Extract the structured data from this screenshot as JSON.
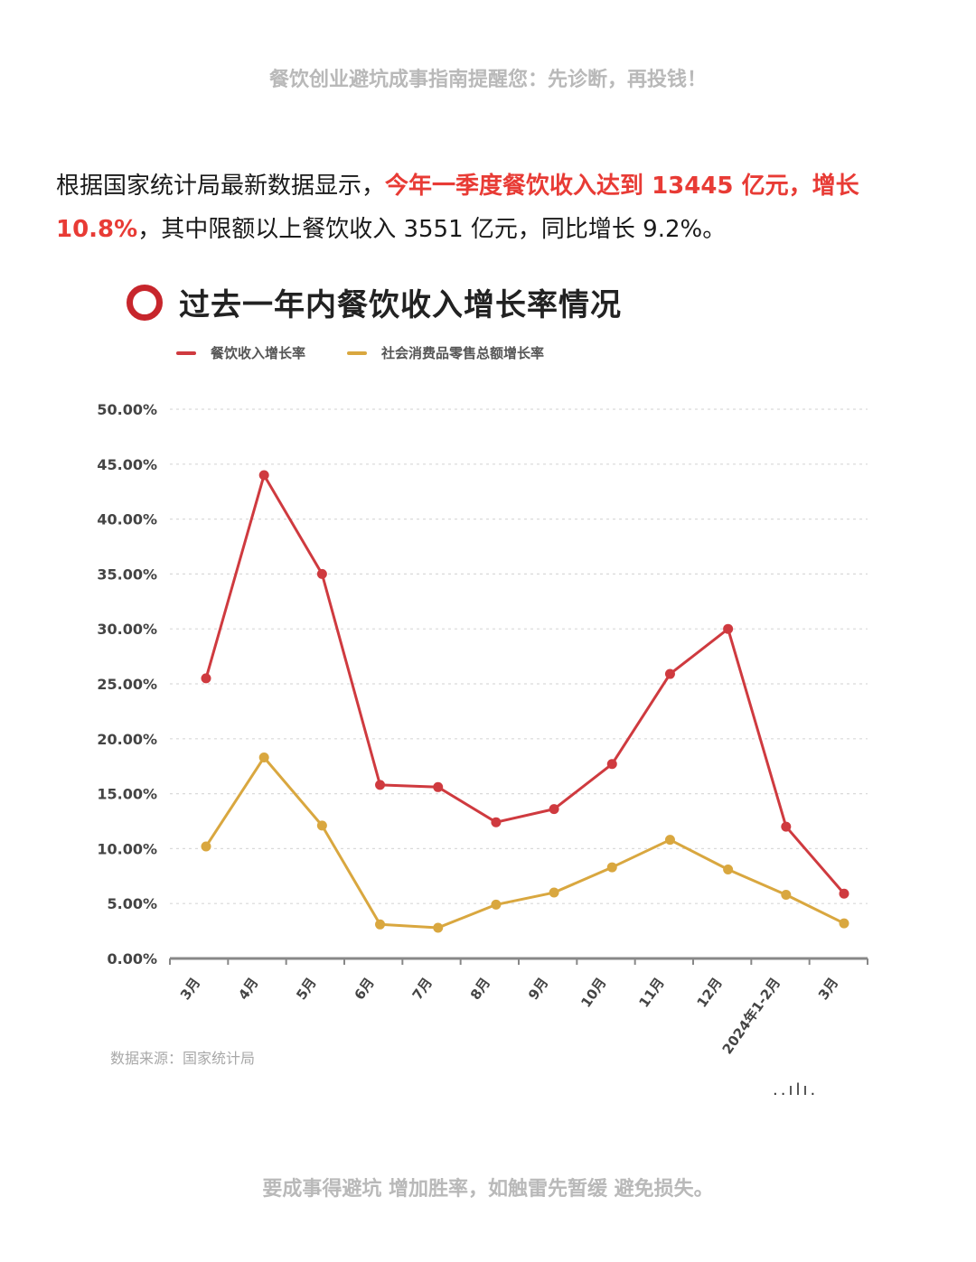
{
  "banner_top": "餐饮创业避坑成事指南提醒您：先诊断，再投钱！",
  "intro": {
    "part1": "根据国家统计局最新数据显示，",
    "highlight": "今年一季度餐饮收入达到 13445 亿元，增长 10.8%",
    "part2": "，其中限额以上餐饮收入 3551 亿元，同比增长 9.2%。"
  },
  "source": "数据来源：国家统计局",
  "watermark": "..ılı.",
  "banner_bottom": "要成事得避坑 增加胜率，如触雷先暂缓 避免损失。",
  "colors": {
    "series_red": "#cf3a3f",
    "series_gold": "#d9a73f",
    "title_ring": "#c7262c",
    "highlight": "#e83b35"
  },
  "chart_data": {
    "type": "line",
    "title": "过去一年内餐饮收入增长率情况",
    "categories": [
      "3月",
      "4月",
      "5月",
      "6月",
      "7月",
      "8月",
      "9月",
      "10月",
      "11月",
      "12月",
      "2024年1-2月",
      "3月"
    ],
    "series": [
      {
        "name": "餐饮收入增长率",
        "values": [
          25.5,
          44.0,
          35.0,
          15.8,
          15.6,
          12.4,
          13.6,
          17.7,
          25.9,
          30.0,
          12.0,
          5.9
        ]
      },
      {
        "name": "社会消费品零售总额增长率",
        "values": [
          10.2,
          18.3,
          12.1,
          3.1,
          2.8,
          4.9,
          6.0,
          8.3,
          10.8,
          8.1,
          5.8,
          3.2
        ]
      }
    ],
    "yticks": [
      "0.00%",
      "5.00%",
      "10.00%",
      "15.00%",
      "20.00%",
      "25.00%",
      "30.00%",
      "35.00%",
      "40.00%",
      "45.00%",
      "50.00%"
    ],
    "ylim": [
      0,
      50
    ],
    "grid": true,
    "legend_position": "top-left"
  }
}
